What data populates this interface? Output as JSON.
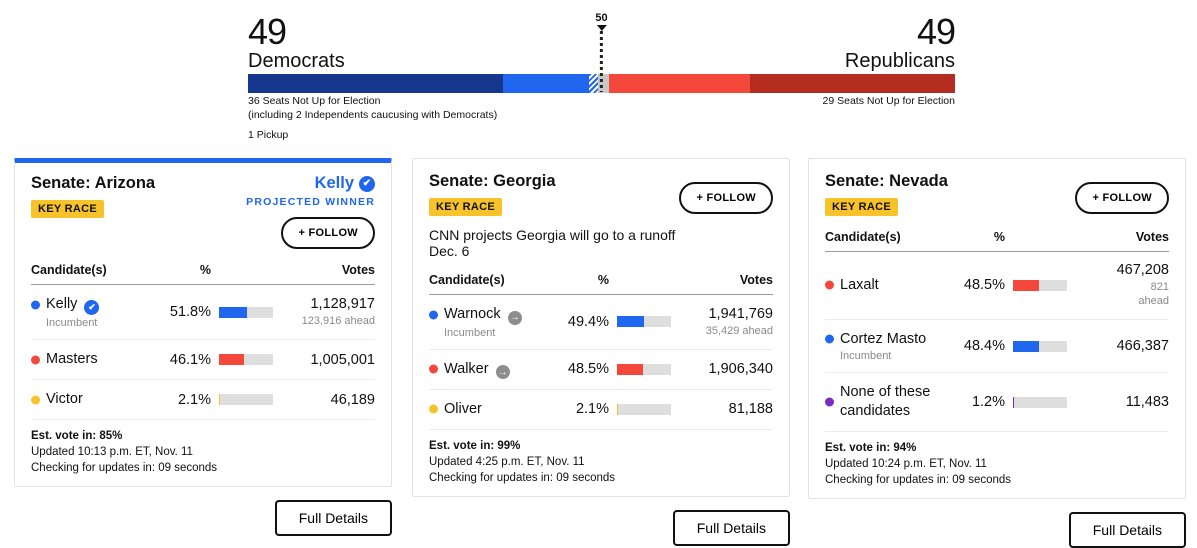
{
  "balance_of_power": {
    "left": {
      "count": "49",
      "party": "Democrats",
      "note_line1": "36 Seats Not Up for Election",
      "note_line2": "(including 2 Independents caucusing with Democrats)",
      "pickup": "1 Pickup"
    },
    "right": {
      "count": "49",
      "party": "Republicans",
      "note": "29 Seats Not Up for Election"
    },
    "majority_marker": "50",
    "segments": [
      {
        "name": "dem-seats-not-up",
        "color": "#17378f",
        "pct": 36
      },
      {
        "name": "dem-seats-won",
        "color": "#2066ef",
        "pct": 12.3
      },
      {
        "name": "dem-seat-leading-hatched",
        "color": "hatched-blue",
        "pct": 1.2
      },
      {
        "name": "uncalled-seats",
        "color": "#c8c8c8",
        "pct": 1.5
      },
      {
        "name": "rep-seats-won",
        "color": "#f4483d",
        "pct": 20
      },
      {
        "name": "rep-seats-not-up",
        "color": "#b52c21",
        "pct": 29
      }
    ]
  },
  "labels": {
    "key_race": "KEY RACE",
    "follow": "+ FOLLOW",
    "full_details": "Full Details",
    "projected_winner": "PROJECTED WINNER",
    "incumbent": "Incumbent"
  },
  "table_headers": {
    "candidates": "Candidate(s)",
    "pct": "%",
    "votes": "Votes"
  },
  "races": [
    {
      "title": "Senate: Arizona",
      "accent_top": true,
      "winner": {
        "name": "Kelly"
      },
      "candidates": [
        {
          "name": "Kelly",
          "party_color": "#2066ef",
          "badge": "check",
          "incumbent": true,
          "pct": "51.8%",
          "pct_value": 51.8,
          "votes": "1,128,917",
          "ahead": [
            "123,916 ahead"
          ]
        },
        {
          "name": "Masters",
          "party_color": "#f4483d",
          "pct": "46.1%",
          "pct_value": 46.1,
          "votes": "1,005,001"
        },
        {
          "name": "Victor",
          "party_color": "#f8c32a",
          "pct": "2.1%",
          "pct_value": 2.1,
          "votes": "46,189"
        }
      ],
      "footer": {
        "est": "Est. vote in: 85%",
        "updated": "Updated 10:13 p.m. ET, Nov. 11",
        "checking": "Checking for updates in: 09 seconds"
      }
    },
    {
      "title": "Senate: Georgia",
      "note": "CNN projects Georgia will go to a runoff Dec. 6",
      "candidates": [
        {
          "name": "Warnock",
          "party_color": "#2066ef",
          "badge": "arrow",
          "incumbent": true,
          "pct": "49.4%",
          "pct_value": 49.4,
          "votes": "1,941,769",
          "ahead": [
            "35,429 ahead"
          ]
        },
        {
          "name": "Walker",
          "party_color": "#f4483d",
          "badge": "arrow",
          "pct": "48.5%",
          "pct_value": 48.5,
          "votes": "1,906,340"
        },
        {
          "name": "Oliver",
          "party_color": "#f8c32a",
          "pct": "2.1%",
          "pct_value": 2.1,
          "votes": "81,188"
        }
      ],
      "footer": {
        "est": "Est. vote in: 99%",
        "updated": "Updated 4:25 p.m. ET, Nov. 11",
        "checking": "Checking for updates in: 09 seconds"
      }
    },
    {
      "title": "Senate: Nevada",
      "candidates": [
        {
          "name": "Laxalt",
          "party_color": "#f4483d",
          "pct": "48.5%",
          "pct_value": 48.5,
          "votes": "467,208",
          "ahead": [
            "821",
            "ahead"
          ]
        },
        {
          "name": "Cortez Masto",
          "party_color": "#2066ef",
          "incumbent": true,
          "pct": "48.4%",
          "pct_value": 48.4,
          "votes": "466,387"
        },
        {
          "name": "None of these candidates",
          "party_color": "#7b2cbf",
          "pct": "1.2%",
          "pct_value": 1.2,
          "votes": "11,483"
        }
      ],
      "footer": {
        "est": "Est. vote in: 94%",
        "updated": "Updated 10:24 p.m. ET, Nov. 11",
        "checking": "Checking for updates in: 09 seconds"
      }
    }
  ]
}
